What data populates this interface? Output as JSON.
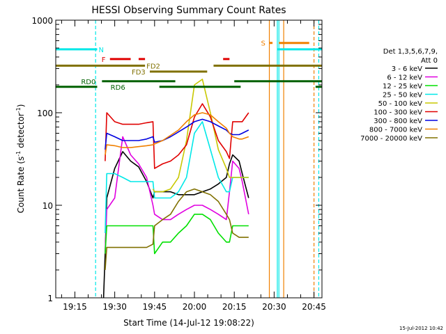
{
  "chart_data": {
    "type": "line",
    "title": "HESSI Observing Summary Count Rates",
    "xlabel": "Start Time (14-Jul-12 19:08:22)",
    "ylabel_main": "Count Rate (s",
    "ylabel_sup1": "-1",
    "ylabel_mid": " detector",
    "ylabel_sup2": "-1",
    "ylabel_end": ")",
    "x_range_min": [
      19.13,
      20.8
    ],
    "y_scale": "log",
    "ylim": [
      1,
      1000
    ],
    "x_ticks": [
      {
        "label": "19:15",
        "t": 19.25
      },
      {
        "label": "19:30",
        "t": 19.5
      },
      {
        "label": "19:45",
        "t": 19.75
      },
      {
        "label": "20:00",
        "t": 20.0
      },
      {
        "label": "20:15",
        "t": 20.25
      },
      {
        "label": "20:30",
        "t": 20.5
      },
      {
        "label": "20:45",
        "t": 20.75
      }
    ],
    "y_ticks": [
      {
        "label": "1",
        "v": 1
      },
      {
        "label": "10",
        "v": 10
      },
      {
        "label": "100",
        "v": 100
      },
      {
        "label": "1000",
        "v": 1000
      }
    ],
    "legend": {
      "placement": "right",
      "header1": "Det 1,3,5,6,7,9,",
      "header2": "Att 0",
      "entries": [
        {
          "label": "3 - 6 keV",
          "color": "#000000"
        },
        {
          "label": "6 - 12 keV",
          "color": "#e000e0"
        },
        {
          "label": "12 - 25 keV",
          "color": "#00e000"
        },
        {
          "label": "25 - 50 keV",
          "color": "#00e8e8"
        },
        {
          "label": "50 - 100 keV",
          "color": "#c8c800"
        },
        {
          "label": "100 - 300 keV",
          "color": "#e00000"
        },
        {
          "label": "300 - 800 keV",
          "color": "#0000e0"
        },
        {
          "label": "800 - 7000 keV",
          "color": "#f08000"
        },
        {
          "label": "7000 - 20000 keV",
          "color": "#807000"
        }
      ]
    },
    "series": [
      {
        "name": "3 - 6 keV",
        "color": "#000000",
        "x": [
          19.43,
          19.44,
          19.45,
          19.5,
          19.55,
          19.6,
          19.65,
          19.7,
          19.74,
          19.75,
          19.8,
          19.85,
          19.9,
          19.95,
          20.0,
          20.05,
          20.1,
          20.15,
          20.2,
          20.22,
          20.24,
          20.28,
          20.3,
          20.34
        ],
        "y": [
          1,
          3,
          12,
          25,
          38,
          30,
          26,
          18,
          12,
          14,
          14,
          14,
          13,
          13,
          13,
          14,
          15,
          17,
          20,
          28,
          35,
          30,
          22,
          12
        ]
      },
      {
        "name": "6 - 12 keV",
        "color": "#e000e0",
        "x": [
          19.44,
          19.45,
          19.5,
          19.55,
          19.6,
          19.65,
          19.7,
          19.74,
          19.75,
          19.8,
          19.85,
          19.9,
          19.95,
          20.0,
          20.05,
          20.1,
          20.15,
          20.2,
          20.22,
          20.24,
          20.28,
          20.3,
          20.34
        ],
        "y": [
          3,
          9,
          12,
          55,
          35,
          28,
          20,
          10,
          8,
          7,
          7,
          8,
          9,
          10,
          10,
          9,
          8,
          7,
          14,
          30,
          25,
          18,
          8
        ]
      },
      {
        "name": "12 - 25 keV",
        "color": "#00e000",
        "x": [
          19.44,
          19.45,
          19.5,
          19.55,
          19.6,
          19.65,
          19.7,
          19.74,
          19.75,
          19.8,
          19.85,
          19.9,
          19.95,
          20.0,
          20.05,
          20.1,
          20.15,
          20.2,
          20.22,
          20.24,
          20.28,
          20.3,
          20.34
        ],
        "y": [
          3,
          6,
          6,
          6,
          6,
          6,
          6,
          6,
          3,
          4,
          4,
          5,
          6,
          8,
          8,
          7,
          5,
          4,
          4,
          6,
          6,
          6,
          6
        ]
      },
      {
        "name": "25 - 50 keV",
        "color": "#00e8e8",
        "x": [
          19.44,
          19.45,
          19.5,
          19.55,
          19.6,
          19.65,
          19.7,
          19.74,
          19.75,
          19.8,
          19.85,
          19.9,
          19.95,
          20.0,
          20.05,
          20.1,
          20.15,
          20.2,
          20.22,
          20.24,
          20.28,
          20.3,
          20.34
        ],
        "y": [
          5,
          22,
          22,
          20,
          18,
          18,
          18,
          18,
          12,
          12,
          12,
          14,
          20,
          60,
          80,
          40,
          20,
          14,
          14,
          20,
          20,
          20,
          20
        ]
      },
      {
        "name": "50 - 100 keV",
        "color": "#c8c800",
        "x": [
          19.74,
          19.75,
          19.8,
          19.85,
          19.9,
          19.95,
          20.0,
          20.05,
          20.1,
          20.15,
          20.2,
          20.22,
          20.24,
          20.28,
          20.3,
          20.34
        ],
        "y": [
          15,
          14,
          14,
          15,
          20,
          50,
          200,
          230,
          100,
          40,
          25,
          20,
          20,
          20,
          20,
          20
        ]
      },
      {
        "name": "100 - 300 keV",
        "color": "#e00000",
        "x": [
          19.44,
          19.45,
          19.5,
          19.55,
          19.6,
          19.65,
          19.7,
          19.74,
          19.75,
          19.8,
          19.85,
          19.9,
          19.95,
          20.0,
          20.05,
          20.1,
          20.15,
          20.2,
          20.22,
          20.24,
          20.28,
          20.3,
          20.34
        ],
        "y": [
          30,
          100,
          80,
          75,
          75,
          75,
          78,
          80,
          25,
          28,
          30,
          35,
          45,
          90,
          125,
          90,
          50,
          38,
          32,
          80,
          80,
          80,
          100
        ]
      },
      {
        "name": "300 - 800 keV",
        "color": "#0000e0",
        "x": [
          19.44,
          19.45,
          19.5,
          19.55,
          19.6,
          19.65,
          19.7,
          19.74,
          19.75,
          19.8,
          19.85,
          19.9,
          19.95,
          20.0,
          20.05,
          20.1,
          20.15,
          20.2,
          20.22,
          20.24,
          20.28,
          20.3,
          20.34
        ],
        "y": [
          40,
          60,
          55,
          50,
          50,
          50,
          52,
          55,
          48,
          50,
          55,
          62,
          70,
          80,
          85,
          80,
          72,
          65,
          60,
          58,
          58,
          60,
          65
        ]
      },
      {
        "name": "800 - 7000 keV",
        "color": "#f08000",
        "x": [
          19.44,
          19.45,
          19.5,
          19.55,
          19.6,
          19.65,
          19.7,
          19.74,
          19.75,
          19.8,
          19.85,
          19.9,
          19.95,
          20.0,
          20.05,
          20.1,
          20.15,
          20.2,
          20.22,
          20.24,
          20.28,
          20.3,
          20.34
        ],
        "y": [
          35,
          45,
          44,
          42,
          42,
          43,
          44,
          45,
          46,
          50,
          57,
          65,
          80,
          95,
          100,
          95,
          80,
          68,
          60,
          55,
          52,
          52,
          55
        ]
      },
      {
        "name": "7000 - 20000 keV",
        "color": "#807000",
        "x": [
          19.44,
          19.45,
          19.5,
          19.55,
          19.6,
          19.65,
          19.7,
          19.74,
          19.75,
          19.8,
          19.85,
          19.9,
          19.95,
          20.0,
          20.05,
          20.1,
          20.15,
          20.2,
          20.22,
          20.24,
          20.28,
          20.3,
          20.34
        ],
        "y": [
          2,
          3.5,
          3.5,
          3.5,
          3.5,
          3.5,
          3.5,
          3.8,
          6,
          7,
          8,
          11,
          14,
          15,
          14,
          13,
          11,
          8,
          7,
          5,
          4.5,
          4.5,
          4.5
        ]
      }
    ],
    "flag_bars": [
      {
        "label": "N",
        "color": "#00e8e8",
        "y": 0.895,
        "segments": [
          [
            19.13,
            19.39
          ],
          [
            20.52,
            20.8
          ]
        ]
      },
      {
        "label": "F",
        "color": "#e00000",
        "y": 0.86,
        "segments": [
          [
            19.47,
            19.6
          ],
          [
            19.65,
            19.69
          ],
          [
            20.18,
            20.22
          ]
        ]
      },
      {
        "label": "S",
        "color": "#f08000",
        "y": 0.918,
        "segments": [
          [
            20.47,
            20.49
          ],
          [
            20.53,
            20.72
          ]
        ]
      },
      {
        "label": "FD2",
        "color": "#807000",
        "y": 0.836,
        "segments": [
          [
            19.13,
            19.69
          ],
          [
            20.12,
            20.8
          ]
        ]
      },
      {
        "label": "FD3",
        "color": "#807000",
        "y": 0.815,
        "segments": [
          [
            19.72,
            20.08
          ]
        ]
      },
      {
        "label": "RD0",
        "color": "#006000",
        "y": 0.78,
        "segments": [
          [
            19.42,
            19.88
          ],
          [
            20.25,
            20.8
          ]
        ]
      },
      {
        "label": "RD6",
        "color": "#006000",
        "y": 0.76,
        "segments": [
          [
            19.13,
            19.39
          ],
          [
            19.78,
            20.29
          ],
          [
            20.76,
            20.8
          ]
        ]
      }
    ],
    "vertical_markers": [
      {
        "t": 19.38,
        "color": "#00e8e8",
        "style": "dashed"
      },
      {
        "t": 20.52,
        "color": "#00e8e8",
        "style": "solid"
      },
      {
        "t": 20.53,
        "color": "#00e8e8",
        "style": "solid"
      },
      {
        "t": 20.78,
        "color": "#00e8e8",
        "style": "dashed"
      },
      {
        "t": 20.47,
        "color": "#f08000",
        "style": "solid"
      },
      {
        "t": 20.56,
        "color": "#f08000",
        "style": "solid"
      },
      {
        "t": 20.75,
        "color": "#f08000",
        "style": "dashed"
      }
    ]
  },
  "timestamp": "15-Jul-2012 10:42"
}
